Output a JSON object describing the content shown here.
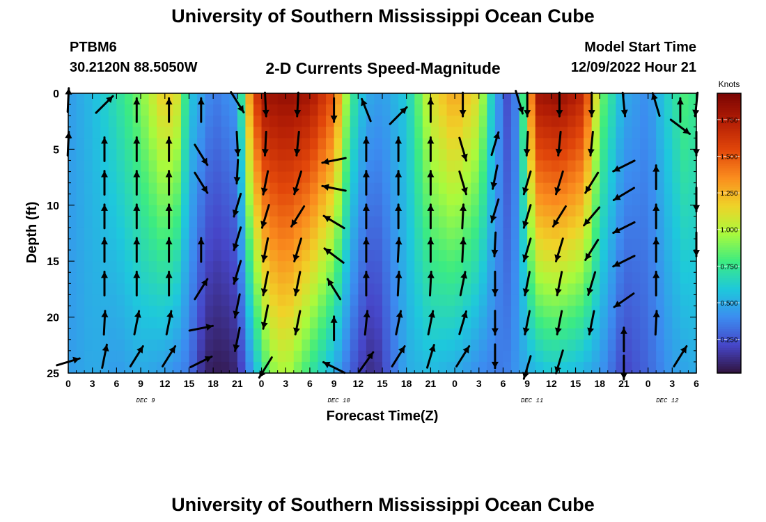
{
  "header": {
    "title": "University of Southern Mississippi Ocean Cube",
    "station": "PTBM6",
    "coords": "30.2120N  88.5050W",
    "product": "2-D Currents Speed-Magnitude",
    "model_start_label": "Model Start Time",
    "model_start_value": "12/09/2022 Hour 21"
  },
  "footer": {
    "title": "University of Southern Mississippi Ocean Cube"
  },
  "chart_data": {
    "type": "heatmap",
    "xlabel": "Forecast Time(Z)",
    "ylabel": "Depth (ft)",
    "colorbar_label": "Knots",
    "x_ticks": [
      "0",
      "3",
      "6",
      "9",
      "12",
      "15",
      "18",
      "21",
      "0",
      "3",
      "6",
      "9",
      "12",
      "15",
      "18",
      "21",
      "0",
      "3",
      "6",
      "9",
      "12",
      "15",
      "18",
      "21",
      "0",
      "3",
      "6"
    ],
    "date_labels": [
      {
        "label": "DEC 9",
        "tick_index": 4
      },
      {
        "label": "DEC 10",
        "tick_index": 14
      },
      {
        "label": "DEC 11",
        "tick_index": 24
      },
      {
        "label": "DEC 12",
        "tick_index": 31
      }
    ],
    "x_range_hours": [
      0,
      78
    ],
    "y_ticks": [
      0,
      5,
      10,
      15,
      20,
      25
    ],
    "ylim": [
      0,
      25
    ],
    "y_inverted": true,
    "colorbar_ticks": [
      "0.250",
      "0.500",
      "0.750",
      "1.000",
      "1.250",
      "1.500",
      "1.750"
    ],
    "colorbar_range": [
      0.02,
      1.93
    ],
    "speed_profile_surface": [
      [
        0,
        0.45
      ],
      [
        3,
        0.55
      ],
      [
        6,
        0.7
      ],
      [
        9,
        0.9
      ],
      [
        12,
        1.2
      ],
      [
        13.5,
        1.1
      ],
      [
        15,
        0.6
      ],
      [
        18,
        0.35
      ],
      [
        21,
        0.45
      ],
      [
        22.5,
        1.3
      ],
      [
        24,
        1.8
      ],
      [
        27,
        1.85
      ],
      [
        30,
        1.8
      ],
      [
        33,
        1.5
      ],
      [
        35,
        0.8
      ],
      [
        37,
        0.5
      ],
      [
        39,
        0.45
      ],
      [
        42,
        0.6
      ],
      [
        45,
        1.1
      ],
      [
        48,
        1.3
      ],
      [
        51,
        1.1
      ],
      [
        53,
        0.5
      ],
      [
        55,
        0.15
      ],
      [
        57,
        1.0
      ],
      [
        58,
        1.8
      ],
      [
        61,
        1.85
      ],
      [
        64,
        1.7
      ],
      [
        66,
        0.9
      ],
      [
        69,
        0.5
      ],
      [
        72,
        0.4
      ],
      [
        74,
        0.6
      ],
      [
        77,
        0.85
      ],
      [
        78,
        0.7
      ]
    ],
    "speed_profile_bottom": [
      [
        0,
        0.45
      ],
      [
        3,
        0.5
      ],
      [
        6,
        0.45
      ],
      [
        9,
        0.5
      ],
      [
        12,
        0.45
      ],
      [
        15,
        0.35
      ],
      [
        17,
        0.08
      ],
      [
        19,
        0.05
      ],
      [
        21,
        0.1
      ],
      [
        23,
        0.5
      ],
      [
        25,
        0.9
      ],
      [
        27,
        1.0
      ],
      [
        30,
        0.75
      ],
      [
        33,
        0.5
      ],
      [
        36,
        0.2
      ],
      [
        38,
        0.1
      ],
      [
        40,
        0.3
      ],
      [
        42,
        0.5
      ],
      [
        45,
        0.55
      ],
      [
        48,
        0.5
      ],
      [
        51,
        0.4
      ],
      [
        54,
        0.35
      ],
      [
        57,
        0.5
      ],
      [
        60,
        0.6
      ],
      [
        63,
        0.55
      ],
      [
        66,
        0.45
      ],
      [
        69,
        0.2
      ],
      [
        72,
        0.3
      ],
      [
        75,
        0.45
      ],
      [
        78,
        0.5
      ]
    ],
    "arrows": [
      {
        "t": 0,
        "d": 0.6,
        "dx": 0.05,
        "dy": -1
      },
      {
        "t": 0,
        "d": 4.5,
        "dx": 0.05,
        "dy": -1
      },
      {
        "t": 0,
        "d": 24,
        "dx": 1,
        "dy": -0.3
      },
      {
        "t": 4.5,
        "d": 1,
        "dx": 0.7,
        "dy": -0.7
      },
      {
        "t": 4.5,
        "d": 5,
        "dx": 0,
        "dy": -1
      },
      {
        "t": 4.5,
        "d": 8,
        "dx": 0,
        "dy": -1
      },
      {
        "t": 4.5,
        "d": 11,
        "dx": 0,
        "dy": -1
      },
      {
        "t": 4.5,
        "d": 14,
        "dx": 0,
        "dy": -1
      },
      {
        "t": 4.5,
        "d": 17,
        "dx": 0,
        "dy": -1
      },
      {
        "t": 4.5,
        "d": 20.5,
        "dx": 0.05,
        "dy": -1
      },
      {
        "t": 4.5,
        "d": 23.5,
        "dx": 0.2,
        "dy": -1
      },
      {
        "t": 8.5,
        "d": 1.5,
        "dx": 0,
        "dy": -1
      },
      {
        "t": 8.5,
        "d": 5,
        "dx": 0,
        "dy": -1
      },
      {
        "t": 8.5,
        "d": 8,
        "dx": 0,
        "dy": -1
      },
      {
        "t": 8.5,
        "d": 11,
        "dx": 0,
        "dy": -1
      },
      {
        "t": 8.5,
        "d": 14,
        "dx": 0,
        "dy": -1
      },
      {
        "t": 8.5,
        "d": 17,
        "dx": 0,
        "dy": -1
      },
      {
        "t": 8.5,
        "d": 20.5,
        "dx": 0.2,
        "dy": -1
      },
      {
        "t": 8.5,
        "d": 23.5,
        "dx": 0.5,
        "dy": -0.8
      },
      {
        "t": 12.5,
        "d": 1.5,
        "dx": 0,
        "dy": -1
      },
      {
        "t": 12.5,
        "d": 5,
        "dx": 0,
        "dy": -1
      },
      {
        "t": 12.5,
        "d": 8,
        "dx": 0,
        "dy": -1
      },
      {
        "t": 12.5,
        "d": 11,
        "dx": 0,
        "dy": -1
      },
      {
        "t": 12.5,
        "d": 14,
        "dx": 0,
        "dy": -1
      },
      {
        "t": 12.5,
        "d": 17,
        "dx": 0,
        "dy": -1
      },
      {
        "t": 12.5,
        "d": 20.5,
        "dx": 0.2,
        "dy": -1
      },
      {
        "t": 12.5,
        "d": 23.5,
        "dx": 0.5,
        "dy": -0.8
      },
      {
        "t": 16.5,
        "d": 1.5,
        "dx": 0,
        "dy": -1
      },
      {
        "t": 16.5,
        "d": 5.5,
        "dx": 0.5,
        "dy": 0.8
      },
      {
        "t": 16.5,
        "d": 8,
        "dx": 0.5,
        "dy": 0.8
      },
      {
        "t": 16.5,
        "d": 14,
        "dx": 0,
        "dy": -1
      },
      {
        "t": 16.5,
        "d": 17.5,
        "dx": 0.5,
        "dy": -0.8
      },
      {
        "t": 16.5,
        "d": 21,
        "dx": 1,
        "dy": -0.2
      },
      {
        "t": 16.5,
        "d": 24,
        "dx": 1,
        "dy": -0.5
      },
      {
        "t": 21,
        "d": 0.8,
        "dx": 0.5,
        "dy": 0.8
      },
      {
        "t": 21,
        "d": 4.5,
        "dx": 0.05,
        "dy": 1
      },
      {
        "t": 21,
        "d": 7,
        "dx": -0.05,
        "dy": 1
      },
      {
        "t": 21,
        "d": 10,
        "dx": -0.3,
        "dy": 1
      },
      {
        "t": 21,
        "d": 13,
        "dx": -0.3,
        "dy": 1
      },
      {
        "t": 21,
        "d": 16,
        "dx": -0.3,
        "dy": 1
      },
      {
        "t": 21,
        "d": 19,
        "dx": -0.2,
        "dy": 1
      },
      {
        "t": 21,
        "d": 22,
        "dx": -0.2,
        "dy": 1
      },
      {
        "t": 24.5,
        "d": 1,
        "dx": 0.05,
        "dy": 1
      },
      {
        "t": 24.5,
        "d": 4.5,
        "dx": -0.05,
        "dy": 1
      },
      {
        "t": 24.5,
        "d": 8,
        "dx": -0.2,
        "dy": 1
      },
      {
        "t": 24.5,
        "d": 11,
        "dx": -0.3,
        "dy": 1
      },
      {
        "t": 24.5,
        "d": 14,
        "dx": -0.2,
        "dy": 1
      },
      {
        "t": 24.5,
        "d": 17,
        "dx": -0.2,
        "dy": 1
      },
      {
        "t": 24.5,
        "d": 20,
        "dx": -0.2,
        "dy": 1
      },
      {
        "t": 24.5,
        "d": 24.5,
        "dx": -0.5,
        "dy": 0.8
      },
      {
        "t": 28.5,
        "d": 1,
        "dx": -0.05,
        "dy": 1
      },
      {
        "t": 28.5,
        "d": 4.5,
        "dx": -0.1,
        "dy": 1
      },
      {
        "t": 28.5,
        "d": 8,
        "dx": -0.3,
        "dy": 1
      },
      {
        "t": 28.5,
        "d": 11,
        "dx": -0.5,
        "dy": 0.8
      },
      {
        "t": 28.5,
        "d": 14,
        "dx": -0.3,
        "dy": 1
      },
      {
        "t": 28.5,
        "d": 17,
        "dx": -0.2,
        "dy": 1
      },
      {
        "t": 28.5,
        "d": 20.5,
        "dx": -0.2,
        "dy": 1
      },
      {
        "t": 33,
        "d": 1.5,
        "dx": 0,
        "dy": 1
      },
      {
        "t": 33,
        "d": 6,
        "dx": -1,
        "dy": 0.2
      },
      {
        "t": 33,
        "d": 8.5,
        "dx": -1,
        "dy": -0.2
      },
      {
        "t": 33,
        "d": 11.5,
        "dx": -1,
        "dy": -0.6
      },
      {
        "t": 33,
        "d": 14.5,
        "dx": -0.8,
        "dy": -0.6
      },
      {
        "t": 33,
        "d": 17.5,
        "dx": -0.5,
        "dy": -0.8
      },
      {
        "t": 33,
        "d": 21,
        "dx": 0,
        "dy": -1
      },
      {
        "t": 33,
        "d": 24.5,
        "dx": -1,
        "dy": -0.5
      },
      {
        "t": 37,
        "d": 1.5,
        "dx": -0.4,
        "dy": -1
      },
      {
        "t": 37,
        "d": 5,
        "dx": 0,
        "dy": -1
      },
      {
        "t": 37,
        "d": 8,
        "dx": 0,
        "dy": -1
      },
      {
        "t": 37,
        "d": 11,
        "dx": 0,
        "dy": -1
      },
      {
        "t": 37,
        "d": 14,
        "dx": 0,
        "dy": -1
      },
      {
        "t": 37,
        "d": 17,
        "dx": 0,
        "dy": -1
      },
      {
        "t": 37,
        "d": 20.5,
        "dx": 0.1,
        "dy": -1
      },
      {
        "t": 37,
        "d": 24,
        "dx": 0.5,
        "dy": -0.7
      },
      {
        "t": 41,
        "d": 2,
        "dx": 0.6,
        "dy": -0.6
      },
      {
        "t": 41,
        "d": 5,
        "dx": 0,
        "dy": -1
      },
      {
        "t": 41,
        "d": 8,
        "dx": 0,
        "dy": -1
      },
      {
        "t": 41,
        "d": 11,
        "dx": 0,
        "dy": -1
      },
      {
        "t": 41,
        "d": 14,
        "dx": 0.05,
        "dy": -1
      },
      {
        "t": 41,
        "d": 17,
        "dx": 0.05,
        "dy": -1
      },
      {
        "t": 41,
        "d": 20.5,
        "dx": 0.2,
        "dy": -1
      },
      {
        "t": 41,
        "d": 23.5,
        "dx": 0.5,
        "dy": -0.8
      },
      {
        "t": 45,
        "d": 1.5,
        "dx": 0,
        "dy": -1
      },
      {
        "t": 45,
        "d": 5,
        "dx": 0,
        "dy": -1
      },
      {
        "t": 45,
        "d": 8,
        "dx": 0,
        "dy": -1
      },
      {
        "t": 45,
        "d": 11,
        "dx": 0,
        "dy": -1
      },
      {
        "t": 45,
        "d": 14,
        "dx": 0,
        "dy": -1
      },
      {
        "t": 45,
        "d": 17,
        "dx": 0.05,
        "dy": -1
      },
      {
        "t": 45,
        "d": 20.5,
        "dx": 0.2,
        "dy": -1
      },
      {
        "t": 45,
        "d": 23.5,
        "dx": 0.3,
        "dy": -1
      },
      {
        "t": 49,
        "d": 1,
        "dx": 0,
        "dy": 1
      },
      {
        "t": 49,
        "d": 5,
        "dx": 0.3,
        "dy": 1
      },
      {
        "t": 49,
        "d": 8,
        "dx": 0.3,
        "dy": 1
      },
      {
        "t": 49,
        "d": 11,
        "dx": 0.05,
        "dy": -1
      },
      {
        "t": 49,
        "d": 14,
        "dx": 0.05,
        "dy": -1
      },
      {
        "t": 49,
        "d": 17,
        "dx": 0.2,
        "dy": -1
      },
      {
        "t": 49,
        "d": 20.5,
        "dx": 0.3,
        "dy": -1
      },
      {
        "t": 49,
        "d": 23.5,
        "dx": 0.5,
        "dy": -0.8
      },
      {
        "t": 53,
        "d": 4.5,
        "dx": 0.3,
        "dy": -1
      },
      {
        "t": 53,
        "d": 7.5,
        "dx": -0.2,
        "dy": 1
      },
      {
        "t": 53,
        "d": 10.5,
        "dx": -0.3,
        "dy": 1
      },
      {
        "t": 53,
        "d": 13.5,
        "dx": -0.05,
        "dy": 1
      },
      {
        "t": 53,
        "d": 17,
        "dx": 0,
        "dy": 1
      },
      {
        "t": 53,
        "d": 20.5,
        "dx": 0,
        "dy": 1
      },
      {
        "t": 53,
        "d": 23.5,
        "dx": 0,
        "dy": 1
      },
      {
        "t": 56,
        "d": 0.8,
        "dx": 0.3,
        "dy": 1
      },
      {
        "t": 57,
        "d": 1,
        "dx": 0,
        "dy": 1
      },
      {
        "t": 57,
        "d": 4.5,
        "dx": -0.05,
        "dy": 1
      },
      {
        "t": 57,
        "d": 8,
        "dx": -0.3,
        "dy": 1
      },
      {
        "t": 57,
        "d": 11,
        "dx": -0.3,
        "dy": 1
      },
      {
        "t": 57,
        "d": 14,
        "dx": -0.3,
        "dy": 1
      },
      {
        "t": 57,
        "d": 17,
        "dx": -0.2,
        "dy": 1
      },
      {
        "t": 57,
        "d": 20.5,
        "dx": -0.2,
        "dy": 1
      },
      {
        "t": 57,
        "d": 24.5,
        "dx": -0.3,
        "dy": 1
      },
      {
        "t": 61,
        "d": 1,
        "dx": 0,
        "dy": 1
      },
      {
        "t": 61,
        "d": 4.5,
        "dx": -0.1,
        "dy": 1
      },
      {
        "t": 61,
        "d": 8,
        "dx": -0.3,
        "dy": 1
      },
      {
        "t": 61,
        "d": 11,
        "dx": -0.5,
        "dy": 0.8
      },
      {
        "t": 61,
        "d": 14,
        "dx": -0.3,
        "dy": 1
      },
      {
        "t": 61,
        "d": 17,
        "dx": -0.2,
        "dy": 1
      },
      {
        "t": 61,
        "d": 20.5,
        "dx": -0.2,
        "dy": 1
      },
      {
        "t": 61,
        "d": 24,
        "dx": -0.3,
        "dy": 1
      },
      {
        "t": 65,
        "d": 1,
        "dx": 0,
        "dy": 1
      },
      {
        "t": 65,
        "d": 4.5,
        "dx": -0.1,
        "dy": 1
      },
      {
        "t": 65,
        "d": 8,
        "dx": -0.5,
        "dy": 0.8
      },
      {
        "t": 65,
        "d": 11,
        "dx": -0.6,
        "dy": 0.7
      },
      {
        "t": 65,
        "d": 14,
        "dx": -0.5,
        "dy": 0.8
      },
      {
        "t": 65,
        "d": 17,
        "dx": -0.3,
        "dy": 1
      },
      {
        "t": 65,
        "d": 20.5,
        "dx": -0.2,
        "dy": 1
      },
      {
        "t": 69,
        "d": 1,
        "dx": 0.1,
        "dy": 1
      },
      {
        "t": 69,
        "d": 6.5,
        "dx": -1,
        "dy": 0.5
      },
      {
        "t": 69,
        "d": 9,
        "dx": -1,
        "dy": 0.6
      },
      {
        "t": 69,
        "d": 12,
        "dx": -1,
        "dy": 0.5
      },
      {
        "t": 69,
        "d": 15,
        "dx": -1,
        "dy": 0.5
      },
      {
        "t": 69,
        "d": 18.5,
        "dx": -1,
        "dy": 0.7
      },
      {
        "t": 69,
        "d": 22,
        "dx": 0,
        "dy": -1
      },
      {
        "t": 69,
        "d": 24.5,
        "dx": 0,
        "dy": 1
      },
      {
        "t": 73,
        "d": 1,
        "dx": -0.3,
        "dy": -1
      },
      {
        "t": 73,
        "d": 7.5,
        "dx": 0,
        "dy": -1
      },
      {
        "t": 73,
        "d": 11,
        "dx": 0,
        "dy": -1
      },
      {
        "t": 73,
        "d": 14,
        "dx": 0,
        "dy": -1
      },
      {
        "t": 73,
        "d": 17,
        "dx": 0,
        "dy": -1
      },
      {
        "t": 73,
        "d": 20.5,
        "dx": 0.05,
        "dy": -1
      },
      {
        "t": 76,
        "d": 1.5,
        "dx": 0,
        "dy": -1
      },
      {
        "t": 76,
        "d": 3,
        "dx": 0.8,
        "dy": 0.6
      },
      {
        "t": 76,
        "d": 23.5,
        "dx": 0.5,
        "dy": -0.8
      },
      {
        "t": 78,
        "d": 1,
        "dx": -0.1,
        "dy": 1
      },
      {
        "t": 78,
        "d": 4.5,
        "dx": 0,
        "dy": 1
      },
      {
        "t": 78,
        "d": 9.5,
        "dx": 0,
        "dy": 1
      },
      {
        "t": 78,
        "d": 13.5,
        "dx": 0,
        "dy": 1
      }
    ]
  }
}
